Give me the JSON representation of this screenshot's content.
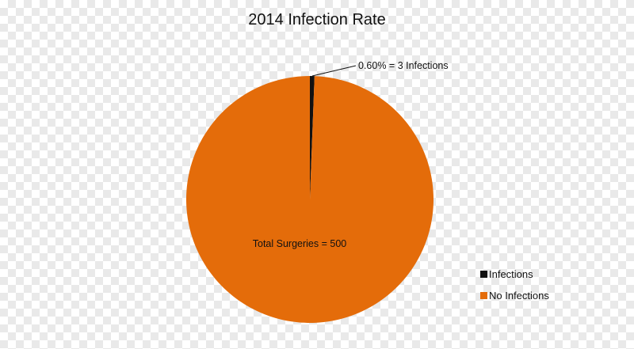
{
  "chart_data": {
    "type": "pie",
    "title": "2014 Infection Rate",
    "slices": [
      {
        "name": "Infections",
        "value": 3,
        "color": "#111111"
      },
      {
        "name": "No Infections",
        "value": 497,
        "color": "#e46c0a"
      }
    ],
    "data_labels": {
      "infections": "0.60% = 3 Infections",
      "total": "Total Surgeries = 500"
    },
    "legend": {
      "position": "bottom-right",
      "entries": [
        "Infections",
        "No Infections"
      ]
    }
  }
}
